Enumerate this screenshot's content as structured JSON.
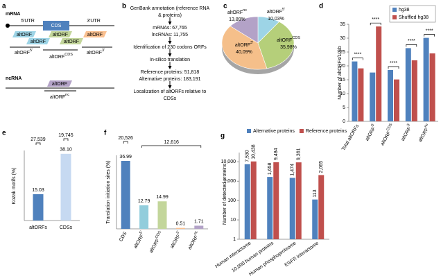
{
  "panel_labels": [
    "a",
    "b",
    "c",
    "d",
    "e",
    "f",
    "g"
  ],
  "panel_a": {
    "mrna": "mRNA",
    "utr5": "5'UTR",
    "cds": "CDS",
    "utr3": "3'UTR",
    "orf_boxes": [
      "altORF",
      "altORF",
      "altORF",
      "altORF",
      "altORF",
      "altORF",
      "altORF"
    ],
    "region_labels": [
      {
        "base": "altORF",
        "sup": "5'"
      },
      {
        "base": "altORF",
        "sup": "CDS"
      },
      {
        "base": "altORF",
        "sup": "3'"
      }
    ],
    "ncrna": "ncRNA",
    "nc_box": "altORF",
    "nc_label": {
      "base": "altORF",
      "sup": "nc"
    }
  },
  "panel_b": {
    "steps": [
      [
        "GenBank annotation (reference RNA",
        "& proteins)"
      ],
      [
        "mRNAs: 67,765",
        "lncRNAs: 11,755"
      ],
      [
        "Identification of 230 codons ORFs"
      ],
      [
        "In-silico translation"
      ],
      [
        "Reference proteins: 51,818",
        "Alternative proteins: 183,191"
      ],
      [
        "Localization of altORFs relative to",
        "CDSs"
      ]
    ]
  },
  "chart_data": [
    {
      "type": "pie",
      "categories": [
        {
          "base": "altORF",
          "sup": "5'"
        },
        {
          "base": "altORF",
          "sup": "CDS"
        },
        {
          "base": "altORF",
          "sup": "3'"
        },
        {
          "base": "altORF",
          "sup": "nc"
        }
      ],
      "values": [
        10.03,
        35.98,
        40.09,
        13.89
      ],
      "value_labels": [
        "10,03%",
        "35,98%",
        "40,09%",
        "13,89%"
      ],
      "colors": [
        "#9dd4e6",
        "#b5cf7a",
        "#f5bf8a",
        "#b3a2c7"
      ]
    },
    {
      "type": "bar",
      "ylabel": "Number of altORFs/10kb",
      "categories": [
        "Total altORFs",
        {
          "base": "altORF",
          "sup": "5'"
        },
        {
          "base": "altORF",
          "sup": "CDS"
        },
        {
          "base": "altORF",
          "sup": "3'"
        },
        {
          "base": "altORF",
          "sup": "nc"
        }
      ],
      "series": [
        {
          "name": "hg38",
          "color": "#4f81bd",
          "values": [
            21.6,
            17.6,
            18.5,
            26.4,
            30.1
          ]
        },
        {
          "name": "Shuffled hg38",
          "color": "#c0504d",
          "values": [
            19.1,
            34.2,
            15.1,
            22,
            24.5
          ]
        }
      ],
      "ylim": [
        0,
        35
      ],
      "yticks": [
        0,
        5,
        10,
        15,
        20,
        25,
        30,
        35
      ],
      "annotations": [
        "****",
        "****",
        "****",
        "****",
        "****"
      ],
      "legend": "top-right"
    },
    {
      "type": "bar",
      "ylabel": "Kozak motifs (%)",
      "categories": [
        "altORFs",
        "CDSs"
      ],
      "values": [
        15.03,
        38.1
      ],
      "value_labels": [
        "15.03",
        "38.10"
      ],
      "colors": [
        "#4f81bd",
        "#c6d9f1"
      ],
      "ylim": [
        0,
        40
      ],
      "data_labels": true,
      "annotations": [
        "27,539",
        "19,745"
      ]
    },
    {
      "type": "bar",
      "ylabel": "Translation initiation sites (%)",
      "categories": [
        "CDS",
        {
          "base": "altORF",
          "sup": "5'"
        },
        {
          "base": "altORF",
          "sup": "CDS"
        },
        {
          "base": "altORF",
          "sup": "3'"
        },
        {
          "base": "altORF",
          "sup": "nc"
        }
      ],
      "values": [
        36.99,
        12.79,
        14.99,
        0.51,
        1.71
      ],
      "colors": [
        "#4f81bd",
        "#92cddc",
        "#c3d69b",
        "#fac090",
        "#b3a2c7"
      ],
      "ylim": [
        0,
        40
      ],
      "data_labels": true,
      "annotations": [
        "20,526",
        "12,616"
      ]
    },
    {
      "type": "bar",
      "ylabel": "Number of detected proteins",
      "log_scale": true,
      "categories": [
        "Human interactome",
        "10,000 human proteins",
        "Human phosphoproteome",
        "EGFR interactome"
      ],
      "series": [
        {
          "name": "Alternative proteins",
          "color": "#4f81bd",
          "values": [
            7530,
            1658,
            1474,
            113
          ],
          "value_labels": [
            "7,530",
            "1,658",
            "1,474",
            "113"
          ]
        },
        {
          "name": "Reference proteins",
          "color": "#c0504d",
          "values": [
            10438,
            9484,
            9361,
            2065
          ],
          "value_labels": [
            "10,438",
            "9,484",
            "9,361",
            "2,065"
          ]
        }
      ],
      "ylim": [
        1,
        30000
      ],
      "yticks": [
        1,
        10,
        100,
        {
          "value": 1000,
          "label": "1,000"
        },
        {
          "value": 10000,
          "label": "10,000"
        }
      ],
      "data_labels": true,
      "legend": "top"
    }
  ]
}
